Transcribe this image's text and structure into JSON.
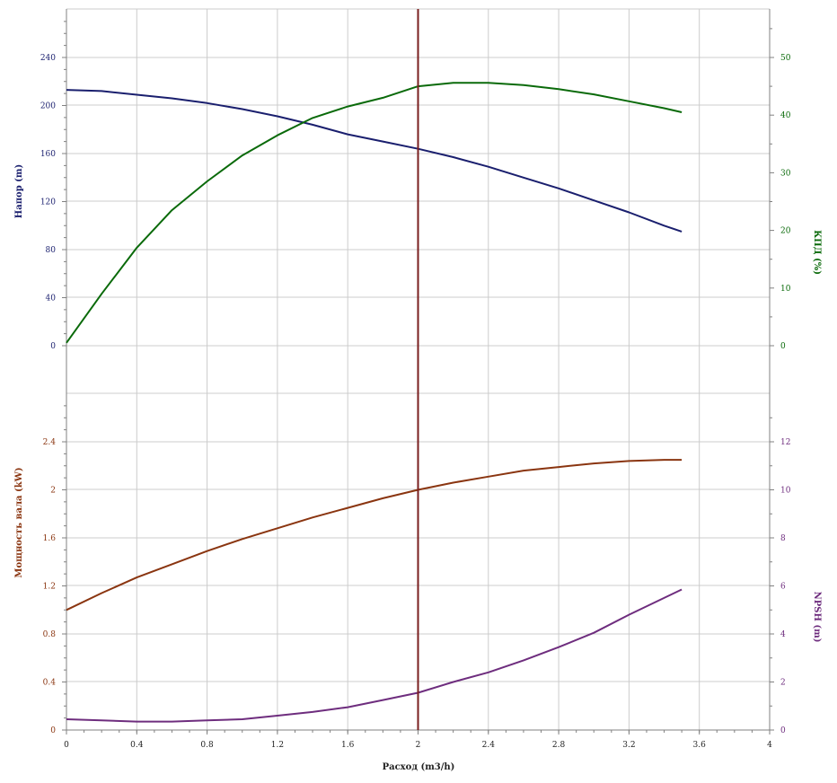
{
  "colors": {
    "head": "#1a1f6e",
    "eff": "#0a6a0a",
    "power": "#8a3510",
    "npsh": "#6e2d7e",
    "marker": "#7a1f1f",
    "grid": "#cccccc",
    "axis": "#808080",
    "xtick": "#222222"
  },
  "chart_data": [
    {
      "type": "line",
      "panel": "top",
      "xlabel": "Расход (m3/h)",
      "x_ticks": [
        "0",
        "0.4",
        "0.8",
        "1.2",
        "1.6",
        "2",
        "2.4",
        "2.8",
        "3.2",
        "3.6",
        "4"
      ],
      "xlim": [
        0,
        4
      ],
      "y_left": {
        "label": "Напор (m)",
        "ticks": [
          "0",
          "40",
          "80",
          "120",
          "160",
          "200",
          "240"
        ],
        "ylim": [
          0,
          240
        ]
      },
      "y_right": {
        "label": "КПД (%)",
        "ticks": [
          "0",
          "10",
          "20",
          "30",
          "40",
          "50"
        ],
        "ylim": [
          0,
          50
        ]
      },
      "marker_x": 2,
      "series": [
        {
          "axis": "left",
          "color_key": "head",
          "x": [
            0,
            0.2,
            0.4,
            0.6,
            0.8,
            1.0,
            1.2,
            1.4,
            1.6,
            1.8,
            2.0,
            2.2,
            2.4,
            2.6,
            2.8,
            3.0,
            3.2,
            3.4,
            3.5
          ],
          "y": [
            213,
            212,
            209,
            206,
            202,
            197,
            191,
            184,
            176,
            170,
            164,
            157,
            149,
            140,
            131,
            121,
            111,
            100,
            95
          ]
        },
        {
          "axis": "right",
          "color_key": "eff",
          "x": [
            0,
            0.2,
            0.4,
            0.6,
            0.8,
            1.0,
            1.2,
            1.4,
            1.6,
            1.8,
            2.0,
            2.2,
            2.4,
            2.6,
            2.8,
            3.0,
            3.2,
            3.4,
            3.5
          ],
          "y": [
            0.5,
            9,
            17,
            23.5,
            28.5,
            33,
            36.5,
            39.5,
            41.5,
            43,
            45,
            45.6,
            45.6,
            45.2,
            44.5,
            43.6,
            42.4,
            41.2,
            40.5
          ]
        }
      ]
    },
    {
      "type": "line",
      "panel": "bottom",
      "xlabel": "Расход (m3/h)",
      "xlim": [
        0,
        4
      ],
      "y_left": {
        "label": "Мощность вала (kW)",
        "ticks": [
          "0",
          "0.4",
          "0.8",
          "1.2",
          "1.6",
          "2",
          "2.4"
        ],
        "ylim": [
          0,
          2.4
        ]
      },
      "y_right": {
        "label": "NPSH (m)",
        "ticks": [
          "0",
          "2",
          "4",
          "6",
          "8",
          "10",
          "12"
        ],
        "ylim": [
          0,
          12
        ]
      },
      "marker_x": 2,
      "series": [
        {
          "axis": "left",
          "color_key": "power",
          "x": [
            0,
            0.2,
            0.4,
            0.6,
            0.8,
            1.0,
            1.2,
            1.4,
            1.6,
            1.8,
            2.0,
            2.2,
            2.4,
            2.6,
            2.8,
            3.0,
            3.2,
            3.4,
            3.5
          ],
          "y": [
            1.0,
            1.14,
            1.27,
            1.38,
            1.49,
            1.59,
            1.68,
            1.77,
            1.85,
            1.93,
            2.0,
            2.06,
            2.11,
            2.16,
            2.19,
            2.22,
            2.24,
            2.25,
            2.25
          ]
        },
        {
          "axis": "right",
          "color_key": "npsh",
          "x": [
            0,
            0.2,
            0.4,
            0.6,
            0.8,
            1.0,
            1.2,
            1.4,
            1.6,
            1.8,
            2.0,
            2.2,
            2.4,
            2.6,
            2.8,
            3.0,
            3.2,
            3.4,
            3.5
          ],
          "y": [
            0.45,
            0.4,
            0.35,
            0.35,
            0.4,
            0.45,
            0.6,
            0.75,
            0.95,
            1.25,
            1.55,
            2.0,
            2.4,
            2.9,
            3.45,
            4.05,
            4.8,
            5.5,
            5.85
          ]
        }
      ]
    }
  ]
}
